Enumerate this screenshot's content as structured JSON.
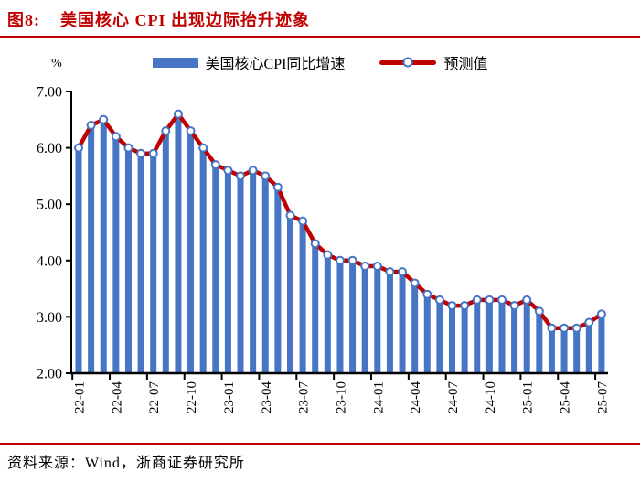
{
  "figure": {
    "label": "图8:",
    "title": "美国核心 CPI 出现边际抬升迹象"
  },
  "legend": {
    "items": [
      {
        "label": "美国核心CPI同比增速",
        "swatch": "bar-swatch",
        "color": "#4575C4"
      },
      {
        "label": "预测值",
        "swatch": "line-swatch",
        "color": "#C00000"
      }
    ]
  },
  "source": {
    "text": "资料来源：Wind，浙商证券研究所"
  },
  "colors": {
    "accent_red": "#C00000",
    "bar_blue": "#4575C4",
    "marker_fill": "#FFFFFF",
    "axis_black": "#000000"
  },
  "chart_data": {
    "type": "bar",
    "title": "美国核心 CPI 出现边际抬升迹象",
    "ylabel": "%",
    "xlabel": "",
    "ylim": [
      2.0,
      7.0
    ],
    "grid": false,
    "legend_position": "top-center",
    "y_tick_values": [
      7,
      6,
      5,
      4,
      3,
      2
    ],
    "y_tick_labels": [
      "7.00",
      "6.00",
      "5.00",
      "4.00",
      "3.00",
      "2.00"
    ],
    "x_tick_labels": [
      "22-01",
      "22-04",
      "22-07",
      "22-10",
      "23-01",
      "23-04",
      "23-07",
      "23-10",
      "24-01",
      "24-04",
      "24-07",
      "24-10",
      "25-01",
      "25-04",
      "25-07"
    ],
    "categories": [
      "22-01",
      "22-02",
      "22-03",
      "22-04",
      "22-05",
      "22-06",
      "22-07",
      "22-08",
      "22-09",
      "22-10",
      "22-11",
      "22-12",
      "23-01",
      "23-02",
      "23-03",
      "23-04",
      "23-05",
      "23-06",
      "23-07",
      "23-08",
      "23-09",
      "23-10",
      "23-11",
      "23-12",
      "24-01",
      "24-02",
      "24-03",
      "24-04",
      "24-05",
      "24-06",
      "24-07",
      "24-08",
      "24-09",
      "24-10",
      "24-11",
      "24-12",
      "25-01",
      "25-02",
      "25-03",
      "25-04",
      "25-05",
      "25-06",
      "25-07"
    ],
    "series": [
      {
        "name": "美国核心CPI同比增速",
        "type": "bar",
        "values": [
          6.0,
          6.4,
          6.5,
          6.2,
          6.0,
          5.9,
          5.9,
          6.3,
          6.6,
          6.3,
          6.0,
          5.7,
          5.6,
          5.5,
          5.6,
          5.5,
          5.3,
          4.8,
          4.7,
          4.3,
          4.1,
          4.0,
          4.0,
          3.9,
          3.9,
          3.8,
          3.8,
          3.6,
          3.4,
          3.3,
          3.2,
          3.2,
          3.3,
          3.3,
          3.3,
          3.2,
          3.3,
          3.1,
          2.8,
          2.8,
          2.8,
          2.9,
          3.0
        ]
      },
      {
        "name": "预测值",
        "type": "line",
        "values": [
          6.0,
          6.4,
          6.5,
          6.2,
          6.0,
          5.9,
          5.9,
          6.3,
          6.6,
          6.3,
          6.0,
          5.7,
          5.6,
          5.5,
          5.6,
          5.5,
          5.3,
          4.8,
          4.7,
          4.3,
          4.1,
          4.0,
          4.0,
          3.9,
          3.9,
          3.8,
          3.8,
          3.6,
          3.4,
          3.3,
          3.2,
          3.2,
          3.3,
          3.3,
          3.3,
          3.2,
          3.3,
          3.1,
          2.8,
          2.8,
          2.8,
          2.9,
          3.05
        ]
      }
    ]
  }
}
